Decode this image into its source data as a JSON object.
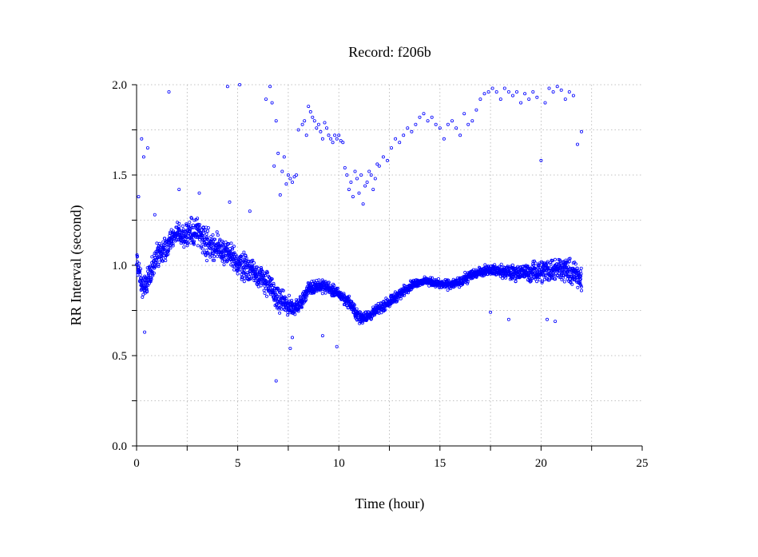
{
  "chart_data": {
    "type": "scatter",
    "title": "Record:  f206b",
    "xlabel": "Time (hour)",
    "ylabel": "RR Interval (second)",
    "xlim": [
      0,
      25
    ],
    "ylim": [
      0,
      2
    ],
    "x_ticks": [
      0,
      5,
      10,
      15,
      20,
      25
    ],
    "x_tick_labels": [
      "0",
      "5",
      "10",
      "15",
      "20",
      "25"
    ],
    "x_minor_ticks": [
      2.5,
      7.5,
      12.5,
      17.5,
      22.5
    ],
    "y_ticks": [
      0,
      0.5,
      1,
      1.5,
      2
    ],
    "y_tick_labels": [
      "0.0",
      "0.5",
      "1.0",
      "1.5",
      "2.0"
    ],
    "y_minor_ticks": [
      0.25,
      0.75,
      1.25,
      1.75
    ],
    "grid": true,
    "marker_color": "#0000ff",
    "series": [
      {
        "band": {
          "x": [
            0.0,
            0.3,
            0.5,
            1.0,
            1.5,
            2.0,
            2.5,
            3.0,
            3.5,
            4.0,
            4.5,
            5.0,
            5.5,
            6.0,
            6.5,
            7.0,
            7.5,
            8.0,
            8.5,
            9.0,
            9.5,
            10.0,
            10.5,
            11.0,
            11.5,
            12.0,
            12.5,
            13.0,
            13.5,
            14.0,
            14.5,
            15.0,
            15.5,
            16.0,
            16.5,
            17.0,
            17.5,
            18.0,
            18.5,
            19.0,
            19.5,
            20.0,
            20.5,
            21.0,
            21.5,
            22.0
          ],
          "low": [
            0.95,
            0.78,
            0.8,
            0.95,
            1.02,
            1.1,
            1.05,
            1.08,
            1.0,
            0.98,
            0.95,
            0.9,
            0.88,
            0.85,
            0.8,
            0.72,
            0.7,
            0.72,
            0.82,
            0.84,
            0.83,
            0.8,
            0.75,
            0.66,
            0.68,
            0.72,
            0.76,
            0.8,
            0.85,
            0.88,
            0.88,
            0.86,
            0.86,
            0.87,
            0.9,
            0.93,
            0.94,
            0.92,
            0.9,
            0.9,
            0.89,
            0.88,
            0.88,
            0.9,
            0.86,
            0.85
          ],
          "high": [
            1.12,
            0.95,
            1.0,
            1.15,
            1.2,
            1.25,
            1.28,
            1.3,
            1.25,
            1.2,
            1.18,
            1.12,
            1.1,
            1.05,
            1.0,
            0.9,
            0.85,
            0.82,
            0.92,
            0.94,
            0.92,
            0.88,
            0.84,
            0.76,
            0.76,
            0.8,
            0.84,
            0.88,
            0.92,
            0.94,
            0.94,
            0.93,
            0.93,
            0.94,
            0.99,
            1.0,
            1.02,
            1.01,
            1.02,
            1.02,
            1.03,
            1.06,
            1.07,
            1.08,
            1.05,
            1.03
          ],
          "density_per_hour": 120
        },
        "outliers_x": [
          0.1,
          0.25,
          0.35,
          0.55,
          0.9,
          1.6,
          2.1,
          3.1,
          4.5,
          4.6,
          5.1,
          5.6,
          6.4,
          6.6,
          6.7,
          6.8,
          6.9,
          7.0,
          7.1,
          7.2,
          7.3,
          7.4,
          7.5,
          7.6,
          7.7,
          7.8,
          7.9,
          8.0,
          8.2,
          8.3,
          8.4,
          8.5,
          8.6,
          8.7,
          8.8,
          8.9,
          9.0,
          9.1,
          9.2,
          9.3,
          9.4,
          9.5,
          9.6,
          9.7,
          9.8,
          9.9,
          10.0,
          10.1,
          10.2,
          10.3,
          10.4,
          10.5,
          10.6,
          10.7,
          10.8,
          10.9,
          11.0,
          11.1,
          11.2,
          11.3,
          11.4,
          11.5,
          11.6,
          11.7,
          11.8,
          11.9,
          12.0,
          12.2,
          12.4,
          12.6,
          12.8,
          13.0,
          13.2,
          13.4,
          13.6,
          13.8,
          14.0,
          14.2,
          14.4,
          14.6,
          14.8,
          15.0,
          15.2,
          15.4,
          15.6,
          15.8,
          16.0,
          16.2,
          16.4,
          16.6,
          16.8,
          17.0,
          17.2,
          17.4,
          17.6,
          17.8,
          18.0,
          18.2,
          18.4,
          18.6,
          18.8,
          19.0,
          19.2,
          19.4,
          19.6,
          19.8,
          20.0,
          20.2,
          20.4,
          20.6,
          20.8,
          21.0,
          21.2,
          21.4,
          21.6,
          21.8,
          22.0,
          0.4,
          6.9,
          7.6,
          7.7,
          9.2,
          9.9,
          10.5,
          17.5,
          18.4,
          20.3,
          20.7,
          22.0
        ],
        "outliers_y": [
          1.38,
          1.7,
          1.6,
          1.65,
          1.28,
          1.96,
          1.42,
          1.4,
          1.99,
          1.35,
          2.0,
          1.3,
          1.92,
          1.99,
          1.9,
          1.55,
          1.8,
          1.62,
          1.39,
          1.52,
          1.6,
          1.45,
          1.5,
          1.48,
          1.46,
          1.49,
          1.5,
          1.75,
          1.78,
          1.8,
          1.72,
          1.88,
          1.85,
          1.82,
          1.8,
          1.76,
          1.78,
          1.74,
          1.7,
          1.79,
          1.76,
          1.72,
          1.7,
          1.68,
          1.72,
          1.7,
          1.72,
          1.69,
          1.68,
          1.54,
          1.5,
          1.42,
          1.46,
          1.38,
          1.52,
          1.48,
          1.4,
          1.5,
          1.34,
          1.44,
          1.46,
          1.52,
          1.5,
          1.42,
          1.48,
          1.56,
          1.55,
          1.6,
          1.58,
          1.65,
          1.7,
          1.68,
          1.72,
          1.76,
          1.74,
          1.78,
          1.82,
          1.84,
          1.8,
          1.82,
          1.78,
          1.76,
          1.7,
          1.78,
          1.8,
          1.76,
          1.72,
          1.84,
          1.78,
          1.8,
          1.86,
          1.92,
          1.95,
          1.96,
          1.98,
          1.96,
          1.92,
          1.98,
          1.96,
          1.94,
          1.96,
          1.9,
          1.95,
          1.92,
          1.96,
          1.93,
          1.58,
          1.9,
          1.98,
          1.96,
          1.99,
          1.97,
          1.92,
          1.96,
          1.94,
          1.67,
          1.74,
          0.63,
          0.36,
          0.54,
          0.6,
          0.61,
          0.55,
          0.8,
          0.74,
          0.7,
          0.7,
          0.69,
          0.86
        ]
      }
    ]
  }
}
